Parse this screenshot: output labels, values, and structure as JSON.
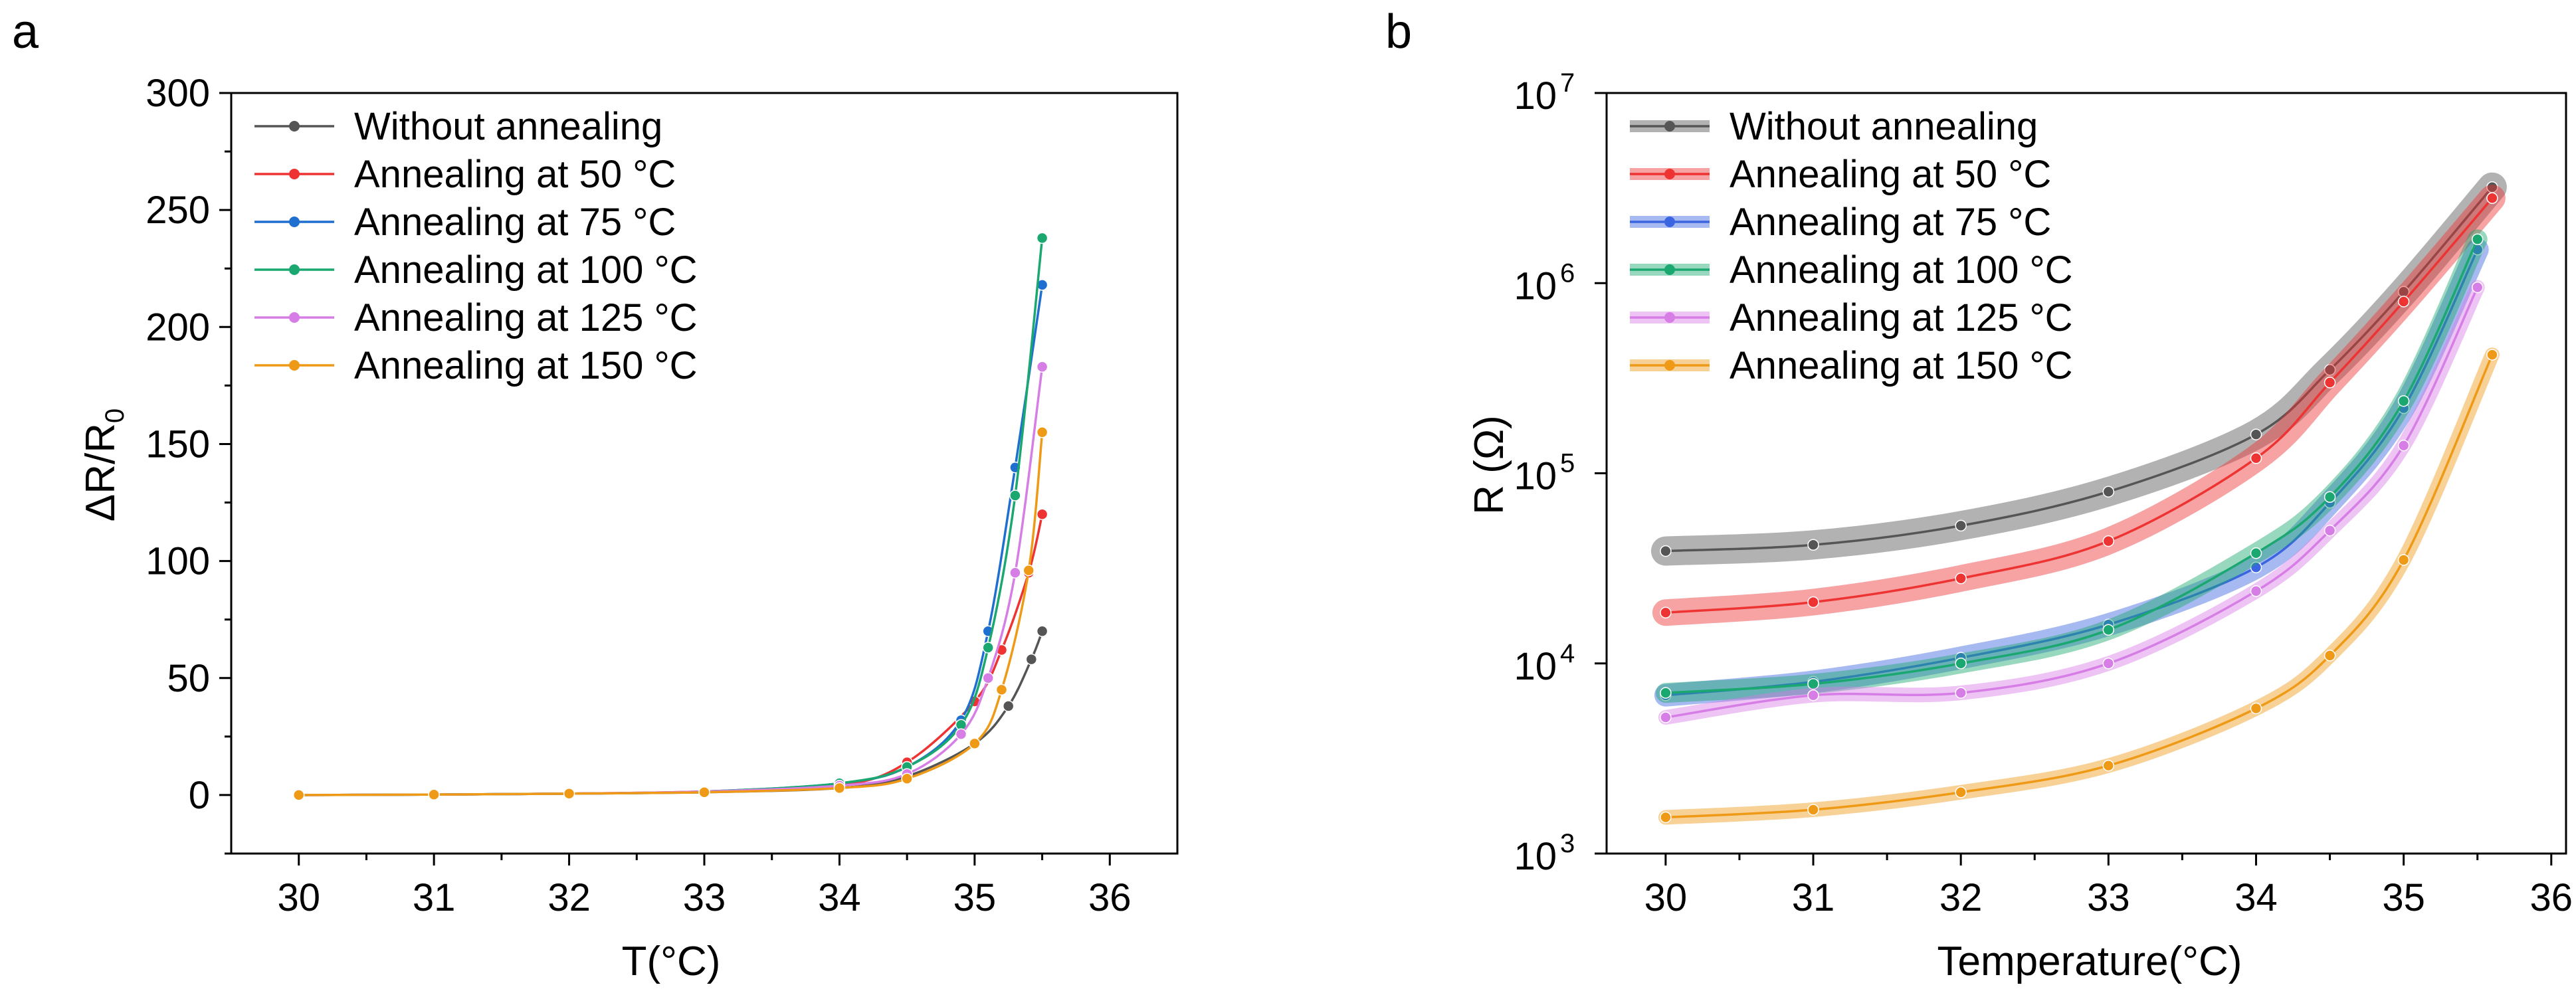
{
  "chart_data": [
    {
      "panel_label": "a",
      "type": "line",
      "xlabel": "T(°C)",
      "ylabel": "ΔR/R",
      "ylabel_sub": "0",
      "xlim": [
        29.5,
        36.5
      ],
      "ylim": [
        -25,
        300
      ],
      "xticks": [
        30,
        31,
        32,
        33,
        34,
        35,
        36
      ],
      "yticks": [
        0,
        50,
        100,
        150,
        200,
        250,
        300
      ],
      "legend_position": "top-left",
      "series": [
        {
          "name": "Without annealing",
          "color": "#555555",
          "x": [
            30,
            31,
            32,
            33,
            34,
            34.5,
            35,
            35.25,
            35.42,
            35.5
          ],
          "y": [
            0,
            0.2,
            0.6,
            1.2,
            3,
            8,
            22,
            38,
            58,
            70
          ]
        },
        {
          "name": "Annealing at 50 °C",
          "color": "#ee3333",
          "x": [
            30,
            31,
            32,
            33,
            34,
            34.5,
            35,
            35.2,
            35.4,
            35.5
          ],
          "y": [
            0,
            0.2,
            0.6,
            1.5,
            4,
            14,
            40,
            62,
            95,
            120
          ]
        },
        {
          "name": "Annealing at 75 °C",
          "color": "#1f6fd1",
          "x": [
            30,
            31,
            32,
            33,
            34,
            34.5,
            34.9,
            35.1,
            35.3,
            35.5
          ],
          "y": [
            0,
            0.2,
            0.6,
            1.5,
            5,
            12,
            32,
            70,
            140,
            218
          ]
        },
        {
          "name": "Annealing at 100 °C",
          "color": "#1aa870",
          "x": [
            30,
            31,
            32,
            33,
            34,
            34.5,
            34.9,
            35.1,
            35.3,
            35.5
          ],
          "y": [
            0,
            0.2,
            0.6,
            1.5,
            5,
            12,
            30,
            63,
            128,
            238
          ]
        },
        {
          "name": "Annealing at 125 °C",
          "color": "#d77de6",
          "x": [
            30,
            31,
            32,
            33,
            34,
            34.5,
            34.9,
            35.1,
            35.3,
            35.5
          ],
          "y": [
            0,
            0.2,
            0.6,
            1.5,
            4,
            9,
            26,
            50,
            95,
            183
          ]
        },
        {
          "name": "Annealing at 150 °C",
          "color": "#ef9a16",
          "x": [
            30,
            31,
            32,
            33,
            34,
            34.5,
            35,
            35.2,
            35.4,
            35.5
          ],
          "y": [
            0,
            0.2,
            0.6,
            1.2,
            3,
            7,
            22,
            45,
            96,
            155
          ]
        }
      ]
    },
    {
      "panel_label": "b",
      "type": "line",
      "yscale": "log",
      "xlabel": "Temperature(°C)",
      "ylabel": "R (Ω)",
      "xlim": [
        29.6,
        36.1
      ],
      "ylim": [
        1000,
        10000000
      ],
      "xticks": [
        30,
        31,
        32,
        33,
        34,
        35,
        36
      ],
      "yticks": [
        {
          "value": 1000,
          "base": "10",
          "exp": "3"
        },
        {
          "value": 10000,
          "base": "10",
          "exp": "4"
        },
        {
          "value": 100000,
          "base": "10",
          "exp": "5"
        },
        {
          "value": 1000000,
          "base": "10",
          "exp": "6"
        },
        {
          "value": 10000000,
          "base": "10",
          "exp": "7"
        }
      ],
      "legend_position": "top-left",
      "series": [
        {
          "name": "Without annealing",
          "color": "#555555",
          "x": [
            30,
            31,
            32,
            33,
            34,
            34.5,
            35,
            35.6
          ],
          "y": [
            39000,
            42000,
            53000,
            80000,
            160000,
            350000,
            900000,
            3200000
          ]
        },
        {
          "name": "Annealing at 50 °C",
          "color": "#ee3333",
          "x": [
            30,
            31,
            32,
            33,
            34,
            34.5,
            35,
            35.6
          ],
          "y": [
            18500,
            21000,
            28000,
            44000,
            120000,
            300000,
            800000,
            2800000
          ]
        },
        {
          "name": "Annealing at 75 °C",
          "color": "#3b64e0",
          "x": [
            30,
            31,
            32,
            33,
            34,
            34.5,
            35,
            35.5
          ],
          "y": [
            6800,
            8000,
            10700,
            16000,
            32000,
            70000,
            220000,
            1500000
          ]
        },
        {
          "name": "Annealing at 100 °C",
          "color": "#1aa870",
          "x": [
            30,
            31,
            32,
            33,
            34,
            34.5,
            35,
            35.5
          ],
          "y": [
            7000,
            7800,
            10000,
            15000,
            38000,
            75000,
            240000,
            1700000
          ]
        },
        {
          "name": "Annealing at 125 °C",
          "color": "#d77de6",
          "x": [
            30,
            31,
            32,
            33,
            34,
            34.5,
            35,
            35.5
          ],
          "y": [
            5200,
            6800,
            7000,
            10000,
            24000,
            50000,
            140000,
            950000
          ]
        },
        {
          "name": "Annealing at 150 °C",
          "color": "#ef9a16",
          "x": [
            30,
            31,
            32,
            33,
            34,
            34.5,
            35,
            35.6
          ],
          "y": [
            1550,
            1700,
            2100,
            2900,
            5800,
            11000,
            35000,
            420000
          ]
        }
      ]
    }
  ]
}
